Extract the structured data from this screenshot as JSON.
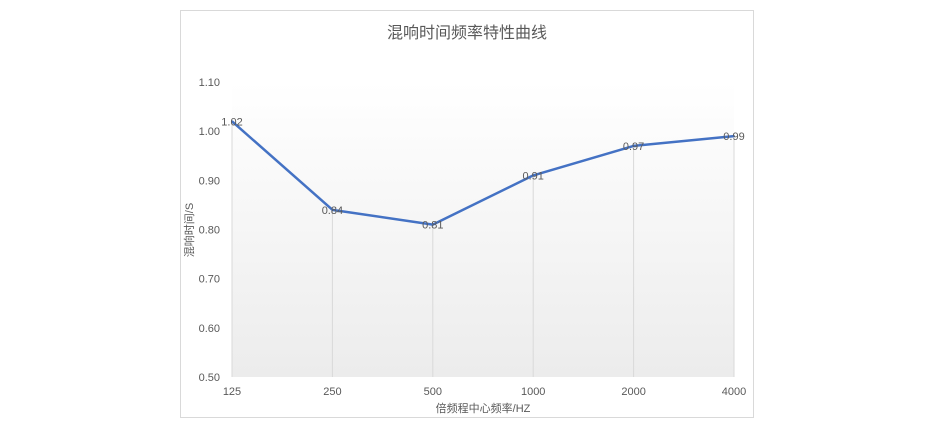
{
  "chart_data": {
    "type": "line",
    "title": "混响时间频率特性曲线",
    "xlabel": "倍频程中心频率/HZ",
    "ylabel": "混响时间/S",
    "categories": [
      "125",
      "250",
      "500",
      "1000",
      "2000",
      "4000"
    ],
    "values": [
      1.02,
      0.84,
      0.81,
      0.91,
      0.97,
      0.99
    ],
    "data_labels": [
      "1.02",
      "0.84",
      "0.81",
      "0.91",
      "0.97",
      "0.99"
    ],
    "ylim": [
      0.5,
      1.1
    ],
    "yticks": [
      "0.50",
      "0.60",
      "0.70",
      "0.80",
      "0.90",
      "1.00",
      "1.10"
    ],
    "grid": false,
    "drop_lines": true,
    "line_color": "#4472c4",
    "legend": "none"
  }
}
